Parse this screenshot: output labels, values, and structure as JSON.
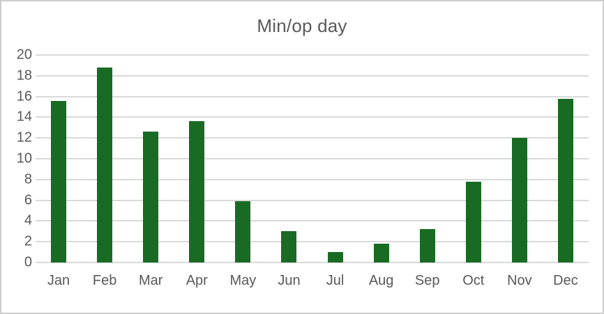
{
  "chart": {
    "title": "Min/op day"
  },
  "chart_data": {
    "type": "bar",
    "title": "Min/op day",
    "categories": [
      "Jan",
      "Feb",
      "Mar",
      "Apr",
      "May",
      "Jun",
      "Jul",
      "Aug",
      "Sep",
      "Oct",
      "Nov",
      "Dec"
    ],
    "values": [
      15.6,
      18.8,
      12.6,
      13.6,
      5.9,
      3.0,
      1.0,
      1.8,
      3.2,
      7.8,
      12.0,
      15.8
    ],
    "xlabel": "",
    "ylabel": "",
    "ylim": [
      0,
      20
    ],
    "ytick_step": 2,
    "ytick_labels": [
      "0",
      "2",
      "4",
      "6",
      "8",
      "10",
      "12",
      "14",
      "16",
      "18",
      "20"
    ],
    "grid": "horizontal",
    "legend": "none",
    "bar_color": "#196B24",
    "gridline_color": "#D9D9D9",
    "text_color": "#595959",
    "background_color": "#FFFFFF",
    "border_color": "#CDCDCD"
  }
}
